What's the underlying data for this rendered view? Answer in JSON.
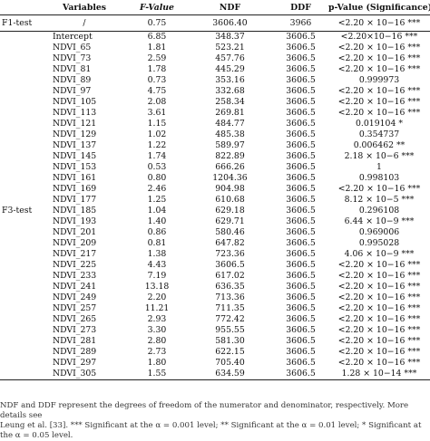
{
  "columns": [
    "Variables",
    "F-Value",
    "NDF",
    "DDF",
    "p-Value (Significance)"
  ],
  "f1": {
    "test": "F1-test",
    "variable": "/",
    "f": "0.75",
    "ndf": "3606.40",
    "ddf": "3966",
    "p": "<2.20 × 10−16 ***"
  },
  "f3_label": "F3-test",
  "rows": [
    {
      "v": "Intercept",
      "f": "6.85",
      "ndf": "348.37",
      "ddf": "3606.5",
      "p": "<2.20×10−16 ***"
    },
    {
      "v": "NDVI_65",
      "f": "1.81",
      "ndf": "523.21",
      "ddf": "3606.5",
      "p": "<2.20 × 10−16 ***"
    },
    {
      "v": "NDVI_73",
      "f": "2.59",
      "ndf": "457.76",
      "ddf": "3606.5",
      "p": "<2.20 × 10−16 ***"
    },
    {
      "v": "NDVI_81",
      "f": "1.78",
      "ndf": "445.29",
      "ddf": "3606.5",
      "p": "<2.20 × 10−16 ***"
    },
    {
      "v": "NDVI_89",
      "f": "0.73",
      "ndf": "353.16",
      "ddf": "3606.5",
      "p": "0.999973"
    },
    {
      "v": "NDVI_97",
      "f": "4.75",
      "ndf": "332.68",
      "ddf": "3606.5",
      "p": "<2.20 × 10−16 ***"
    },
    {
      "v": "NDVI_105",
      "f": "2.08",
      "ndf": "258.34",
      "ddf": "3606.5",
      "p": "<2.20 × 10−16 ***"
    },
    {
      "v": "NDVI_113",
      "f": "3.61",
      "ndf": "269.81",
      "ddf": "3606.5",
      "p": "<2.20 × 10−16 ***"
    },
    {
      "v": "NDVI_121",
      "f": "1.15",
      "ndf": "484.77",
      "ddf": "3606.5",
      "p": "0.019104 *"
    },
    {
      "v": "NDVI_129",
      "f": "1.02",
      "ndf": "485.38",
      "ddf": "3606.5",
      "p": "0.354737"
    },
    {
      "v": "NDVI_137",
      "f": "1.22",
      "ndf": "589.97",
      "ddf": "3606.5",
      "p": "0.006462 **"
    },
    {
      "v": "NDVI_145",
      "f": "1.74",
      "ndf": "822.89",
      "ddf": "3606.5",
      "p": "2.18 × 10−6 ***"
    },
    {
      "v": "NDVI_153",
      "f": "0.53",
      "ndf": "666.26",
      "ddf": "3606.5",
      "p": "1"
    },
    {
      "v": "NDVI_161",
      "f": "0.80",
      "ndf": "1204.36",
      "ddf": "3606.5",
      "p": "0.998103"
    },
    {
      "v": "NDVI_169",
      "f": "2.46",
      "ndf": "904.98",
      "ddf": "3606.5",
      "p": "<2.20 × 10−16 ***"
    },
    {
      "v": "NDVI_177",
      "f": "1.25",
      "ndf": "610.68",
      "ddf": "3606.5",
      "p": "8.12 × 10−5 ***"
    },
    {
      "v": "NDVI_185",
      "f": "1.04",
      "ndf": "629.18",
      "ddf": "3606.5",
      "p": "0.296108"
    },
    {
      "v": "NDVI_193",
      "f": "1.40",
      "ndf": "629.71",
      "ddf": "3606.5",
      "p": "6.44 × 10−9 ***"
    },
    {
      "v": "NDVI_201",
      "f": "0.86",
      "ndf": "580.46",
      "ddf": "3606.5",
      "p": "0.969006"
    },
    {
      "v": "NDVI_209",
      "f": "0.81",
      "ndf": "647.82",
      "ddf": "3606.5",
      "p": "0.995028"
    },
    {
      "v": "NDVI_217",
      "f": "1.38",
      "ndf": "723.36",
      "ddf": "3606.5",
      "p": "4.06 × 10−9 ***"
    },
    {
      "v": "NDVI_225",
      "f": "4.43",
      "ndf": "3606.5",
      "ddf": "3606.5",
      "p": "<2.20 × 10−16 ***"
    },
    {
      "v": "NDVI_233",
      "f": "7.19",
      "ndf": "617.02",
      "ddf": "3606.5",
      "p": "<2.20 × 10−16 ***"
    },
    {
      "v": "NDVI_241",
      "f": "13.18",
      "ndf": "636.35",
      "ddf": "3606.5",
      "p": "<2.20 × 10−16 ***"
    },
    {
      "v": "NDVI_249",
      "f": "2.20",
      "ndf": "713.36",
      "ddf": "3606.5",
      "p": "<2.20 × 10−16 ***"
    },
    {
      "v": "NDVI_257",
      "f": "11.21",
      "ndf": "711.35",
      "ddf": "3606.5",
      "p": "<2.20 × 10−16 ***"
    },
    {
      "v": "NDVI_265",
      "f": "2.93",
      "ndf": "772.42",
      "ddf": "3606.5",
      "p": "<2.20 × 10−16 ***"
    },
    {
      "v": "NDVI_273",
      "f": "3.30",
      "ndf": "955.55",
      "ddf": "3606.5",
      "p": "<2.20 × 10−16 ***"
    },
    {
      "v": "NDVI_281",
      "f": "2.80",
      "ndf": "581.30",
      "ddf": "3606.5",
      "p": "<2.20 × 10−16 ***"
    },
    {
      "v": "NDVI_289",
      "f": "2.73",
      "ndf": "622.15",
      "ddf": "3606.5",
      "p": "<2.20 × 10−16 ***"
    },
    {
      "v": "NDVI_297",
      "f": "1.80",
      "ndf": "705.40",
      "ddf": "3606.5",
      "p": "<2.20 × 10−16 ***"
    },
    {
      "v": "NDVI_305",
      "f": "1.55",
      "ndf": "634.59",
      "ddf": "3606.5",
      "p": "1.28 × 10−14 ***"
    }
  ],
  "note_line1": "NDF and DDF represent the degrees of freedom of the numerator and denominator, respectively. More details see",
  "note_line2": "Leung et al. [33]. *** Significant at the α = 0.001 level; ** Significant at the α = 0.01 level; * Significant at the α = 0.05 level."
}
